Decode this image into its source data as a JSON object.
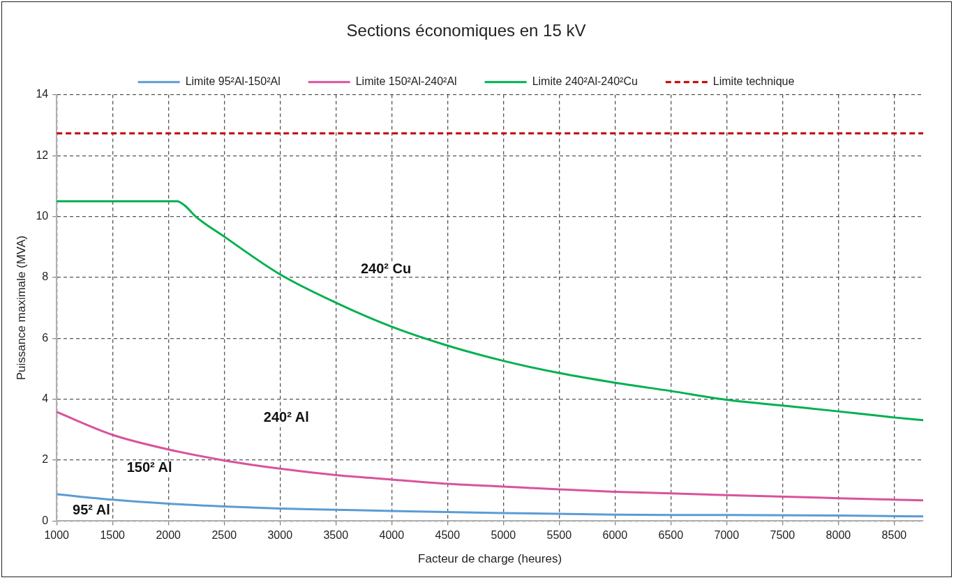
{
  "chart_data": {
    "type": "line",
    "title": "Sections économiques en 15 kV",
    "xlabel": "Facteur de charge (heures)",
    "ylabel": "Puissance maximale (MVA)",
    "xlim": [
      1000,
      8760
    ],
    "xticks": [
      1000,
      1500,
      2000,
      2500,
      3000,
      3500,
      4000,
      4500,
      5000,
      5500,
      6000,
      6500,
      7000,
      7500,
      8000,
      8500
    ],
    "ylim": [
      0,
      14
    ],
    "yticks": [
      0,
      2,
      4,
      6,
      8,
      10,
      12,
      14
    ],
    "grid": true,
    "legend": "top",
    "marker": "none",
    "series": [
      {
        "name": "Limite 95²Al-150²Al",
        "color": "#5b9bd5",
        "x": [
          1000,
          1500,
          2000,
          2500,
          3000,
          3500,
          4000,
          5000,
          6000,
          6500,
          7000,
          8000,
          8760
        ],
        "values": [
          0.88,
          0.7,
          0.57,
          0.48,
          0.41,
          0.37,
          0.33,
          0.26,
          0.21,
          0.2,
          0.2,
          0.18,
          0.15
        ]
      },
      {
        "name": "Limite 150²Al-240²Al",
        "color": "#d9539b",
        "x": [
          1000,
          1500,
          2000,
          2500,
          3000,
          3500,
          4000,
          4500,
          5000,
          5500,
          6000,
          6500,
          7000,
          8000,
          8760
        ],
        "values": [
          3.58,
          2.83,
          2.35,
          1.99,
          1.72,
          1.51,
          1.36,
          1.22,
          1.13,
          1.04,
          0.96,
          0.91,
          0.85,
          0.75,
          0.68
        ]
      },
      {
        "name": "Limite 240²Al-240²Cu",
        "color": "#00b050",
        "x": [
          1000,
          1500,
          2000,
          2080,
          2150,
          2245,
          2500,
          3000,
          3500,
          4000,
          4500,
          5000,
          5500,
          6000,
          6500,
          7000,
          7500,
          8000,
          8500,
          8760
        ],
        "values": [
          10.5,
          10.5,
          10.5,
          10.5,
          10.35,
          10.0,
          9.34,
          8.1,
          7.17,
          6.38,
          5.76,
          5.26,
          4.86,
          4.54,
          4.27,
          3.98,
          3.79,
          3.6,
          3.4,
          3.31
        ]
      },
      {
        "name": "Limite technique",
        "color": "#c00000",
        "line_style": "dashed",
        "x": [
          1000,
          8760
        ],
        "values": [
          12.73,
          12.73
        ]
      }
    ],
    "annotations": [
      "240² Cu",
      "240² Al",
      "150² Al",
      "95² Al"
    ]
  }
}
